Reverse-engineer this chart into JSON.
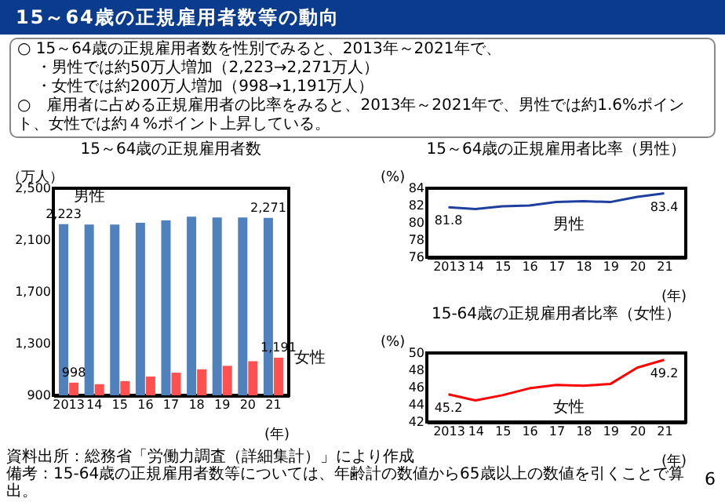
{
  "chart_data": [
    {
      "type": "other",
      "title": "15～64歳の正規雇用者数等の動向",
      "annotations": [
        "○ 15～64歳の正規雇用者数を性別でみると、2013年～2021年で、",
        "・男性では約50万人増加（2,223→2,271万人）",
        "・女性では約200万人増加（998→1,191万人）",
        "○　雇用者に占める正規雇用者の比率をみると、2013年～2021年で、男性では約1.6%ポイント、女性では約４%ポイント上昇している。",
        "6"
      ]
    },
    {
      "type": "bar",
      "title": "15～64歳の正規雇用者数",
      "ylabel": "（万人）",
      "xlabel": "(年)",
      "categories": [
        "2013",
        "14",
        "15",
        "16",
        "17",
        "18",
        "19",
        "20",
        "21"
      ],
      "series": [
        {
          "name": "男性",
          "color": "#4f81bd",
          "values": [
            2223,
            2219,
            2219,
            2233,
            2251,
            2281,
            2275,
            2275,
            2271
          ],
          "value_labels": [
            "2,223",
            null,
            null,
            null,
            null,
            null,
            null,
            null,
            "2,271"
          ]
        },
        {
          "name": "女性",
          "color": "#ff5050",
          "values": [
            998,
            986,
            1010,
            1045,
            1075,
            1101,
            1128,
            1164,
            1191
          ],
          "value_labels": [
            "998",
            null,
            null,
            null,
            null,
            null,
            null,
            null,
            "1,191"
          ]
        }
      ],
      "ylim": [
        900,
        2500
      ],
      "yticks": [
        {
          "value": 900,
          "label": "900"
        },
        {
          "value": 1300,
          "label": "1,300"
        },
        {
          "value": 1700,
          "label": "1,700"
        },
        {
          "value": 2100,
          "label": "2,100"
        },
        {
          "value": 2500,
          "label": "2,500"
        }
      ],
      "legend": false,
      "grid": false,
      "annotations": [
        "資料出所：総務省「労働力調査（詳細集計）」により作成",
        "備考：15-64歳の正規雇用者数等については、年齢計の数値から65歳以上の数値を引くことで算出。"
      ]
    },
    {
      "type": "line",
      "title": "15～64歳の正規雇用者比率（男性）",
      "ylabel": "(%)",
      "xlabel": "(年)",
      "categories": [
        "2013",
        "14",
        "15",
        "16",
        "17",
        "18",
        "19",
        "20",
        "21"
      ],
      "series": [
        {
          "name": "男性",
          "color": "#1f3f9f",
          "values": [
            81.8,
            81.6,
            81.9,
            82.0,
            82.4,
            82.5,
            82.4,
            83.0,
            83.4
          ],
          "value_labels": [
            "81.8",
            null,
            null,
            null,
            null,
            null,
            null,
            null,
            "83.4"
          ]
        }
      ],
      "ylim": [
        76,
        84
      ],
      "yticks": [
        76,
        78,
        80,
        82,
        84
      ],
      "legend": false,
      "grid": false,
      "marker": "none",
      "line_style": "solid"
    },
    {
      "type": "line",
      "title": "15-64歳の正規雇用者比率（女性）",
      "ylabel": "(%)",
      "xlabel": "(年)",
      "categories": [
        "2013",
        "14",
        "15",
        "16",
        "17",
        "18",
        "19",
        "20",
        "21"
      ],
      "series": [
        {
          "name": "女性",
          "color": "#ff0000",
          "values": [
            45.2,
            44.5,
            45.1,
            45.9,
            46.3,
            46.2,
            46.4,
            48.3,
            49.2
          ],
          "value_labels": [
            "45.2",
            null,
            null,
            null,
            null,
            null,
            null,
            null,
            "49.2"
          ]
        }
      ],
      "ylim": [
        42,
        50
      ],
      "yticks": [
        42,
        44,
        46,
        48,
        50
      ],
      "legend": false,
      "grid": false,
      "marker": "none",
      "line_style": "solid"
    }
  ]
}
